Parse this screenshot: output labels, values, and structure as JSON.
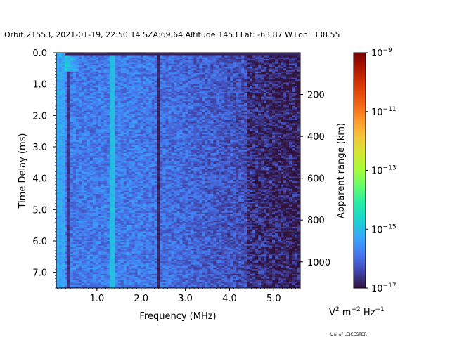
{
  "chart_data": {
    "type": "heatmap",
    "title": "Orbit:21553, 2021-01-19, 22:50:14 SZA:69.64 Altitude:1453 Lat: -63.87 W.Lon: 338.55",
    "xlabel": "Frequency (MHz)",
    "ylabel": "Time Delay (ms)",
    "y2label": "Apparent range (km)",
    "xlim": [
      0.08,
      5.6
    ],
    "ylim": [
      7.5,
      0.0
    ],
    "y2lim": [
      0,
      1125
    ],
    "xticks": [
      1.0,
      2.0,
      3.0,
      4.0,
      5.0
    ],
    "xtick_labels": [
      "1.0",
      "2.0",
      "3.0",
      "4.0",
      "5.0"
    ],
    "yticks": [
      0.0,
      1.0,
      2.0,
      3.0,
      4.0,
      5.0,
      6.0,
      7.0
    ],
    "ytick_labels": [
      "0.0",
      "1.0",
      "2.0",
      "3.0",
      "4.0",
      "5.0",
      "6.0",
      "7.0"
    ],
    "y2ticks": [
      200,
      400,
      600,
      800,
      1000
    ],
    "y2tick_labels": [
      "200",
      "400",
      "600",
      "800",
      "1000"
    ],
    "colorbar": {
      "colormap": "turbo",
      "scale": "log",
      "range": [
        1e-17,
        1e-09
      ],
      "ticks": [
        "10^-9",
        "10^-11",
        "10^-13",
        "10^-15",
        "10^-17"
      ],
      "tick_base": "10",
      "tick_exponents": [
        "−9",
        "−11",
        "−13",
        "−15",
        "−17"
      ],
      "units_main": "V",
      "units_exp1": "2",
      "units_mid": " m",
      "units_exp2": "−2",
      "units_mid2": " Hz",
      "units_exp3": "−1"
    },
    "features": [
      {
        "type": "vertical_line",
        "frequency_mhz": 2.38,
        "intensity_log10": -16.8,
        "description": "dark low-intensity line"
      },
      {
        "type": "vertical_line",
        "frequency_mhz": 1.35,
        "intensity_log10": -15.0,
        "description": "bright interference line"
      },
      {
        "type": "vertical_line",
        "frequency_mhz": 0.38,
        "intensity_log10": -16.6,
        "description": "dark line"
      },
      {
        "type": "region",
        "frequency_mhz": [
          0.08,
          0.6
        ],
        "delay_ms": [
          0.1,
          0.6
        ],
        "intensity_log10": -14.0,
        "description": "bright green ground-echo region"
      },
      {
        "type": "trend",
        "description": "background intensity decreases from about 1e-15.8 at low frequency to about 1e-16.9 above 4.5 MHz"
      }
    ]
  },
  "credit": "Uni of LEICESTER"
}
